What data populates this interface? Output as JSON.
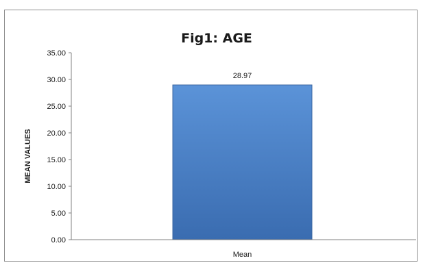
{
  "chart_data": {
    "type": "bar",
    "title": "Fig1: AGE",
    "xlabel": "",
    "ylabel": "MEAN VALUES",
    "categories": [
      "Mean"
    ],
    "values": [
      28.97
    ],
    "data_labels": [
      "28.97"
    ],
    "ylim": [
      0,
      35
    ],
    "yticks": [
      0,
      5,
      10,
      15,
      20,
      25,
      30,
      35
    ],
    "ytick_labels": [
      "0.00",
      "5.00",
      "10.00",
      "15.00",
      "20.00",
      "25.00",
      "30.00",
      "35.00"
    ],
    "grid": false,
    "legend": "none",
    "colors": {
      "bar": "#4a7ebb",
      "bar_edge": "#3a65a0",
      "axis": "#808080"
    }
  }
}
